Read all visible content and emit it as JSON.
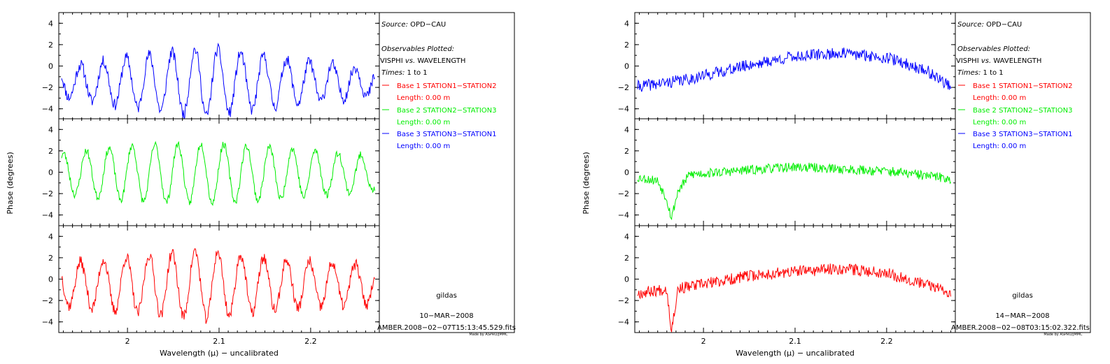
{
  "chart_data": [
    {
      "type": "line",
      "ylabel": "Phase (degrees)",
      "xlabel": "Wavelength (μ) − uncalibrated",
      "xlim": [
        1.925,
        2.275
      ],
      "x_ticks": [
        "2",
        "2.1",
        "2.2"
      ],
      "grid": false,
      "panels": [
        {
          "series_name": "Base 3 STATION3−STATION1",
          "color": "#0000ff",
          "ylim": [
            -5,
            5
          ],
          "y_ticks": [
            "4",
            "2",
            "0",
            "−2",
            "−4"
          ],
          "baseline": -1.5,
          "amplitude_profile": [
            [
              1.925,
              1.3
            ],
            [
              2.0,
              2.3
            ],
            [
              2.085,
              3.2
            ],
            [
              2.17,
              2.2
            ],
            [
              2.27,
              1.2
            ]
          ],
          "cycles_per_micron": 40.0,
          "phase_offset": 1.9,
          "noise": 0.55,
          "seed": 11
        },
        {
          "series_name": "Base 2 STATION2−STATION3",
          "color": "#00ee00",
          "ylim": [
            -5,
            5
          ],
          "y_ticks": [
            "4",
            "2",
            "0",
            "−2",
            "−4"
          ],
          "baseline": -0.1,
          "amplitude_profile": [
            [
              1.925,
              1.8
            ],
            [
              2.0,
              2.6
            ],
            [
              2.085,
              2.8
            ],
            [
              2.17,
              2.4
            ],
            [
              2.27,
              1.6
            ]
          ],
          "cycles_per_micron": 40.0,
          "phase_offset": 0.3,
          "noise": 0.35,
          "seed": 23
        },
        {
          "series_name": "Base 1 STATION1−STATION2",
          "color": "#ff0000",
          "ylim": [
            -5,
            5
          ],
          "y_ticks": [
            "4",
            "2",
            "0",
            "−2",
            "−4"
          ],
          "baseline": -0.5,
          "amplitude_profile": [
            [
              1.925,
              1.9
            ],
            [
              2.0,
              2.6
            ],
            [
              2.085,
              3.2
            ],
            [
              2.17,
              2.3
            ],
            [
              2.27,
              1.8
            ]
          ],
          "cycles_per_micron": 40.0,
          "phase_offset": 1.9,
          "noise": 0.55,
          "seed": 37
        }
      ],
      "legend": {
        "source": "OPD−CAU",
        "observables_value": "VISPHI vs. WAVELENGTH",
        "times_value": "1 to 1",
        "entries": [
          {
            "name": "Base 1 STATION1−STATION2",
            "length": "Length:  0.00 m",
            "color": "#ff0000"
          },
          {
            "name": "Base 2 STATION2−STATION3",
            "length": "Length:  0.00 m",
            "color": "#00ee00"
          },
          {
            "name": "Base 3 STATION3−STATION1",
            "length": "Length:  0.00 m",
            "color": "#0000ff"
          }
        ],
        "footer_gildas": "gildas",
        "footer_date": "10−MAR−2008",
        "footer_file": "AMBER.2008−02−07T15:13:45.529.fits",
        "footer_credit": "Made by ASPRO/JMMC"
      }
    },
    {
      "type": "line",
      "ylabel": "Phase (degrees)",
      "xlabel": "Wavelength (μ) − uncalibrated",
      "xlim": [
        1.925,
        2.275
      ],
      "x_ticks": [
        "2",
        "2.1",
        "2.2"
      ],
      "grid": false,
      "panels": [
        {
          "series_name": "Base 3 STATION3−STATION1",
          "color": "#0000ff",
          "ylim": [
            -5,
            5
          ],
          "y_ticks": [
            "4",
            "2",
            "0",
            "−2",
            "−4"
          ],
          "trend": [
            [
              1.93,
              -1.9
            ],
            [
              1.98,
              -1.3
            ],
            [
              2.05,
              0.1
            ],
            [
              2.1,
              0.9
            ],
            [
              2.15,
              1.2
            ],
            [
              2.2,
              0.8
            ],
            [
              2.245,
              -0.5
            ],
            [
              2.27,
              -1.9
            ]
          ],
          "noise": 0.55,
          "seed": 41
        },
        {
          "series_name": "Base 2 STATION2−STATION3",
          "color": "#00ee00",
          "ylim": [
            -5,
            5
          ],
          "y_ticks": [
            "4",
            "2",
            "0",
            "−2",
            "−4"
          ],
          "trend": [
            [
              1.93,
              -0.5
            ],
            [
              1.95,
              -0.8
            ],
            [
              1.96,
              -2.5
            ],
            [
              1.965,
              -4.3
            ],
            [
              1.972,
              -1.8
            ],
            [
              1.985,
              -0.2
            ],
            [
              2.05,
              0.2
            ],
            [
              2.1,
              0.5
            ],
            [
              2.15,
              0.3
            ],
            [
              2.2,
              0.1
            ],
            [
              2.27,
              -0.6
            ]
          ],
          "noise": 0.45,
          "seed": 53
        },
        {
          "series_name": "Base 1 STATION1−STATION2",
          "color": "#ff0000",
          "ylim": [
            -5,
            5
          ],
          "y_ticks": [
            "4",
            "2",
            "0",
            "−2",
            "−4"
          ],
          "trend": [
            [
              1.93,
              -1.3
            ],
            [
              1.96,
              -0.9
            ],
            [
              1.965,
              -4.9
            ],
            [
              1.972,
              -0.9
            ],
            [
              2.05,
              0.3
            ],
            [
              2.1,
              0.7
            ],
            [
              2.15,
              1.0
            ],
            [
              2.2,
              0.6
            ],
            [
              2.27,
              -1.2
            ]
          ],
          "noise": 0.55,
          "seed": 67
        }
      ],
      "legend": {
        "source": "OPD−CAU",
        "observables_value": "VISPHI vs. WAVELENGTH",
        "times_value": "1 to 1",
        "entries": [
          {
            "name": "Base 1 STATION1−STATION2",
            "length": "Length:  0.00 m",
            "color": "#ff0000"
          },
          {
            "name": "Base 2 STATION2−STATION3",
            "length": "Length:  0.00 m",
            "color": "#00ee00"
          },
          {
            "name": "Base 3 STATION3−STATION1",
            "length": "Length:  0.00 m",
            "color": "#0000ff"
          }
        ],
        "footer_gildas": "gildas",
        "footer_date": "14−MAR−2008",
        "footer_file": "AMBER.2008−02−08T03:15:02.322.fits",
        "footer_credit": "Made by ASPRO/JMMC"
      }
    }
  ]
}
